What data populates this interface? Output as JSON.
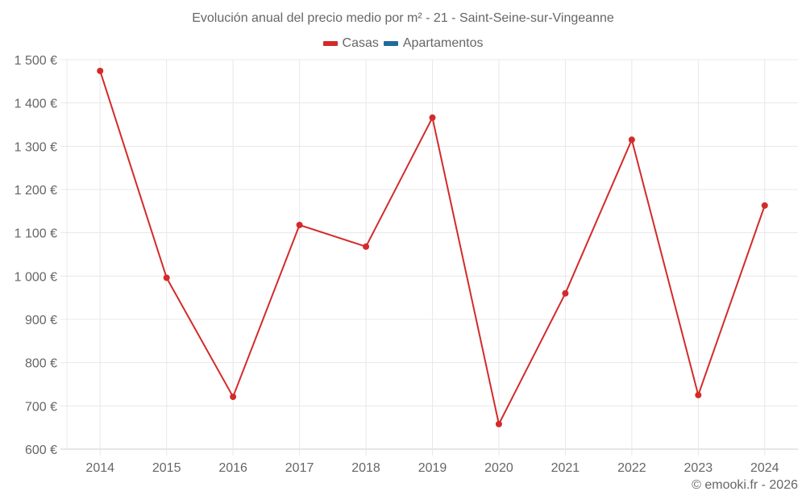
{
  "chart": {
    "title": "Evolución anual del precio medio por m² - 21 - Saint-Seine-sur-Vingeanne",
    "legend": [
      {
        "label": "Casas",
        "color": "#d42a2a"
      },
      {
        "label": "Apartamentos",
        "color": "#1f6b9e"
      }
    ],
    "credit": "© emooki.fr - 2026"
  },
  "chart_data": {
    "type": "line",
    "title": "Evolución anual del precio medio por m² - 21 - Saint-Seine-sur-Vingeanne",
    "xlabel": "",
    "ylabel": "",
    "categories": [
      "2014",
      "2015",
      "2016",
      "2017",
      "2018",
      "2019",
      "2020",
      "2021",
      "2022",
      "2023",
      "2024"
    ],
    "series": [
      {
        "name": "Casas",
        "color": "#d42a2a",
        "values": [
          1474,
          996,
          721,
          1118,
          1068,
          1366,
          658,
          960,
          1315,
          725,
          1163
        ]
      },
      {
        "name": "Apartamentos",
        "color": "#1f6b9e",
        "values": []
      }
    ],
    "ylim": [
      600,
      1500
    ],
    "yticks": [
      600,
      700,
      800,
      900,
      1000,
      1100,
      1200,
      1300,
      1400,
      1500
    ],
    "ytick_labels": [
      "600 €",
      "700 €",
      "800 €",
      "900 €",
      "1 000 €",
      "1 100 €",
      "1 200 €",
      "1 300 €",
      "1 400 €",
      "1 500 €"
    ],
    "grid": true,
    "legend_position": "top"
  }
}
